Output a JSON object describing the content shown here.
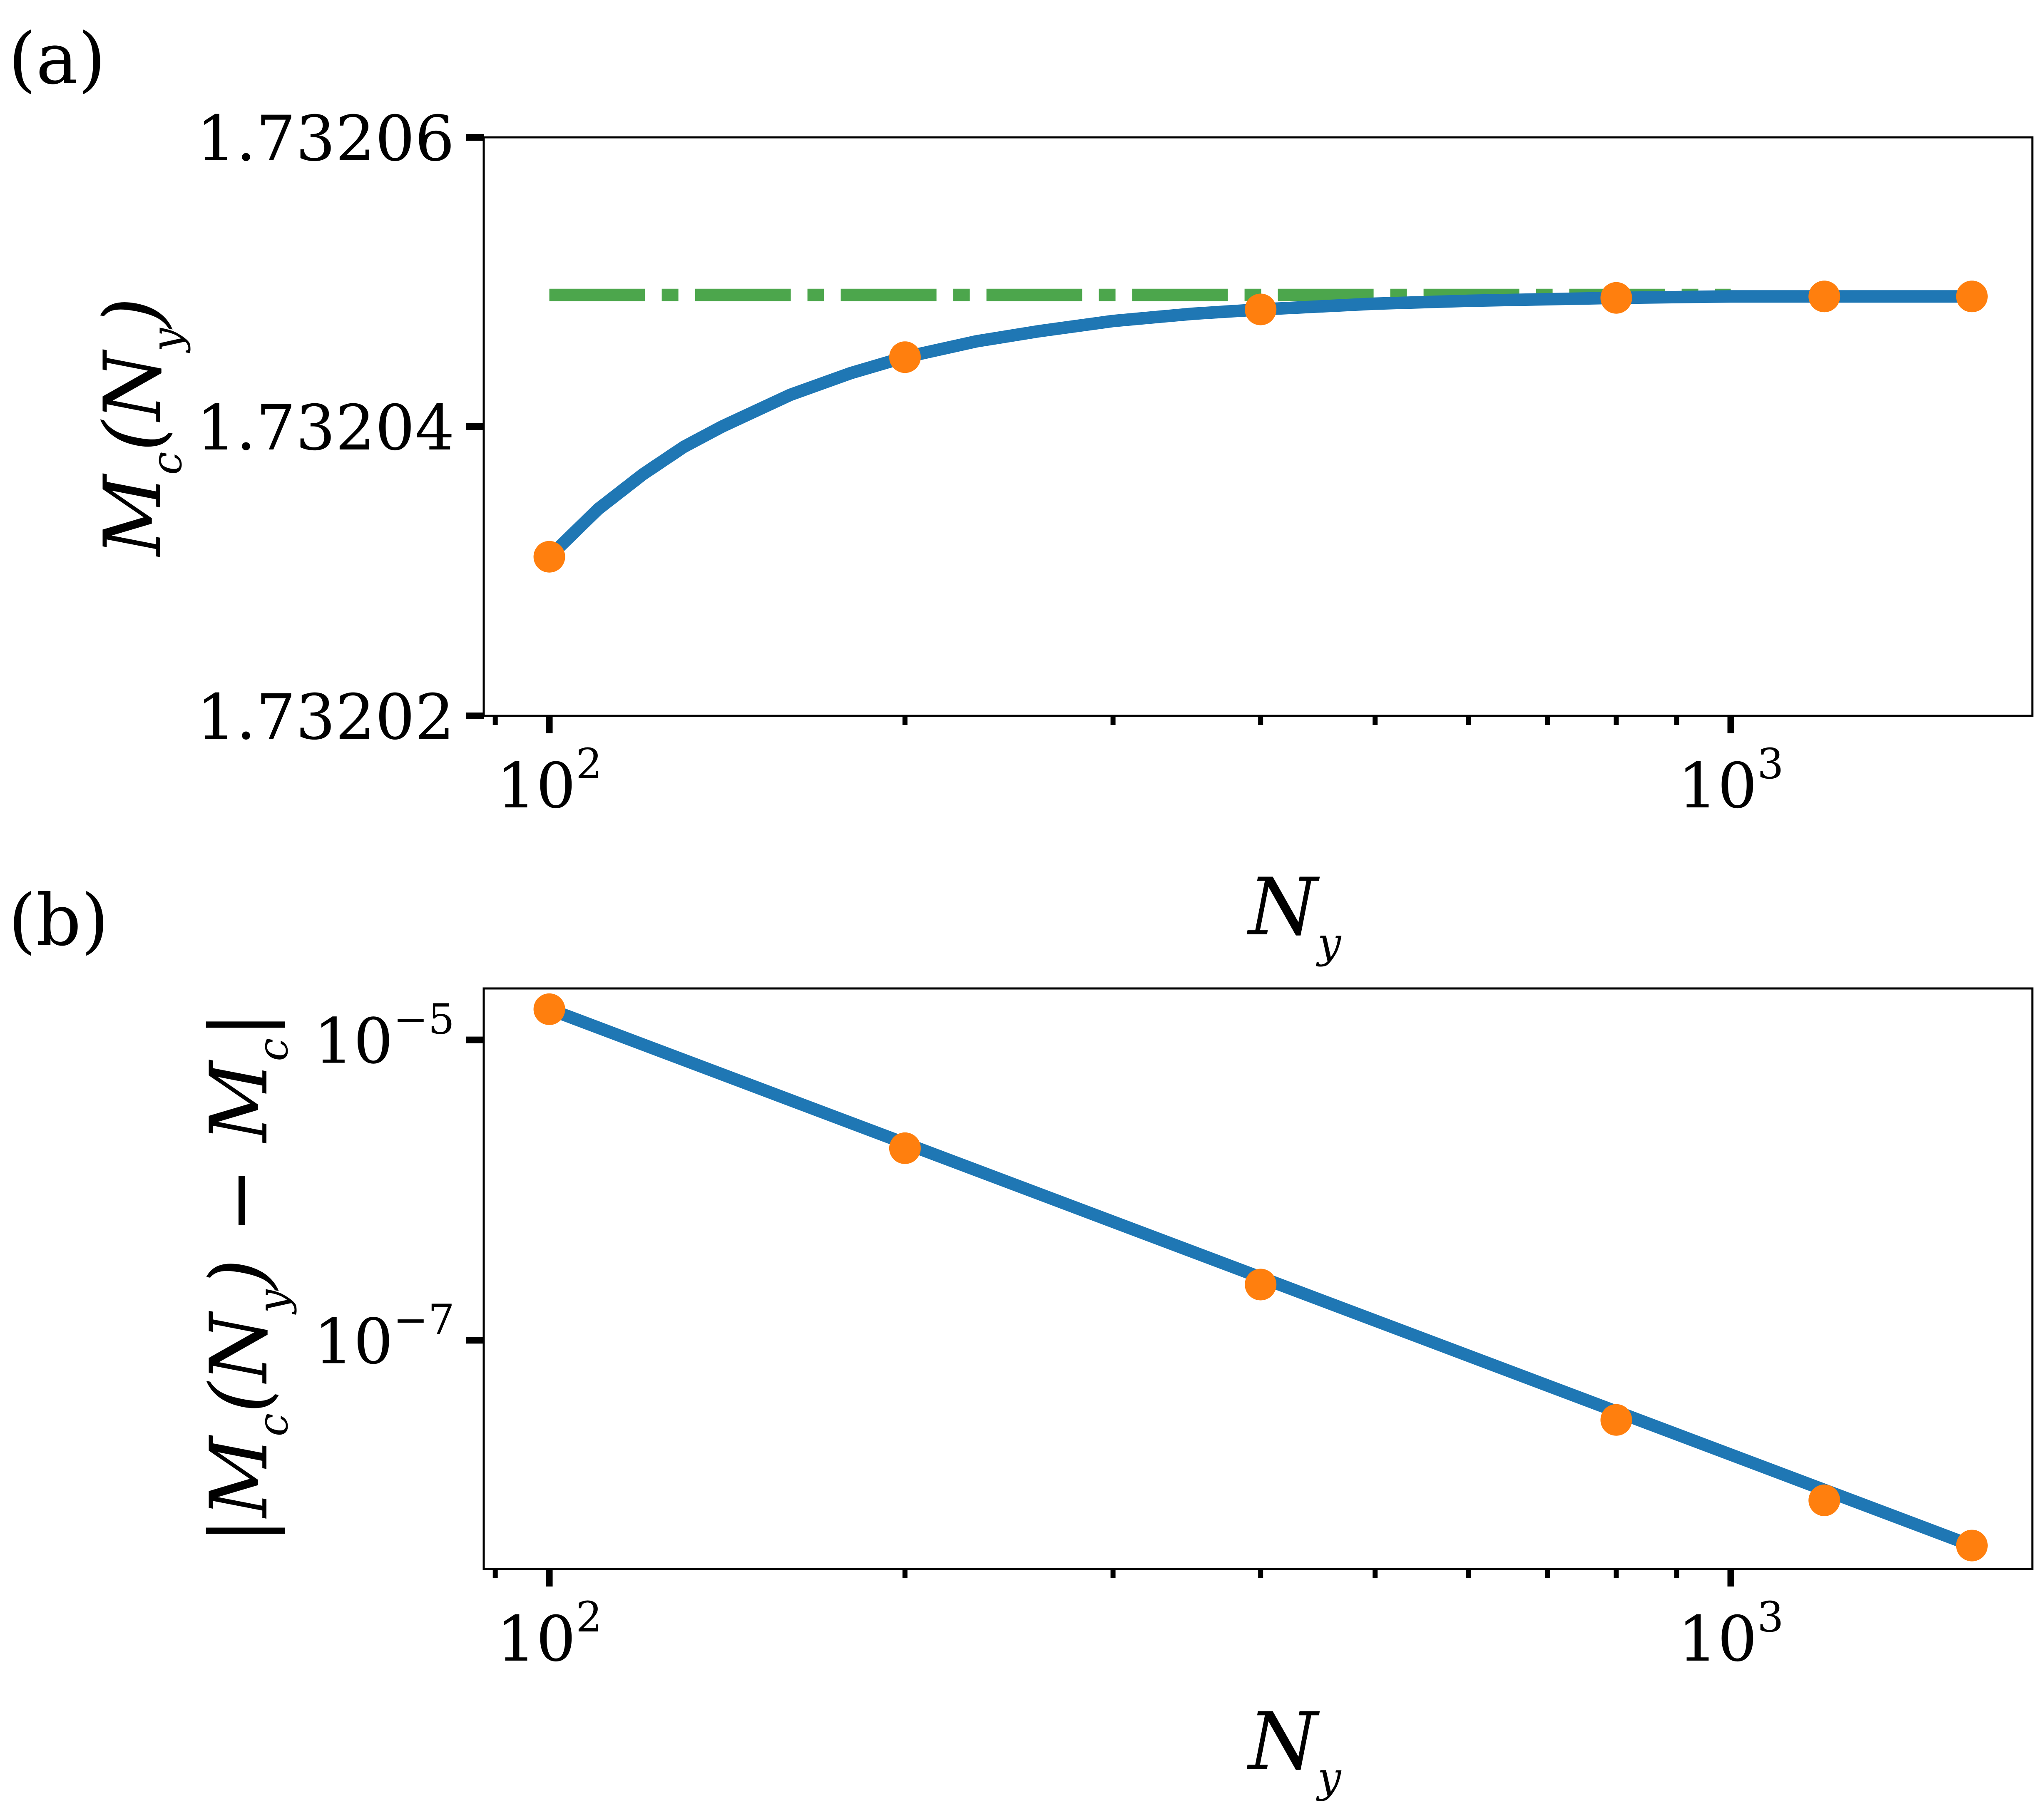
{
  "chart_data": [
    {
      "type": "line",
      "panel_label": "(a)",
      "xlabel": "N_y",
      "ylabel": "M_c(N_y)",
      "xscale": "log",
      "yscale": "linear",
      "xlim": [
        88,
        1800
      ],
      "ylim": [
        1.73202,
        1.73206
      ],
      "x_ticks": [
        {
          "value": 100,
          "base": "10",
          "exp": "2"
        },
        {
          "value": 1000,
          "base": "10",
          "exp": "3"
        }
      ],
      "y_ticks": [
        {
          "value": 1.73202,
          "label": "1.73202"
        },
        {
          "value": 1.73204,
          "label": "1.73204"
        },
        {
          "value": 1.73206,
          "label": "1.73206"
        }
      ],
      "grid": false,
      "series": [
        {
          "kind": "fit",
          "color": "#1f77b4",
          "x": [
            100,
            110,
            120,
            130,
            140,
            160,
            180,
            200,
            230,
            260,
            300,
            350,
            400,
            500,
            600,
            800,
            1000,
            1280,
            1600
          ],
          "y": [
            1.732031,
            1.7320343,
            1.7320367,
            1.7320386,
            1.73204,
            1.7320422,
            1.7320437,
            1.7320448,
            1.7320459,
            1.7320466,
            1.7320473,
            1.7320478,
            1.7320481,
            1.7320485,
            1.7320487,
            1.7320489,
            1.732049,
            1.732049,
            1.732049
          ]
        },
        {
          "kind": "data",
          "color": "#ff7f0e",
          "x": [
            100,
            200,
            400,
            800,
            1200,
            1600
          ],
          "y": [
            1.732031,
            1.7320448,
            1.7320481,
            1.7320489,
            1.732049,
            1.732049
          ]
        },
        {
          "kind": "limit",
          "color": "#4ca64c",
          "style": "dashdot",
          "x": [
            100,
            1000
          ],
          "y": [
            1.7320491,
            1.7320491
          ]
        }
      ]
    },
    {
      "type": "line",
      "panel_label": "(b)",
      "xlabel": "N_y",
      "ylabel": "|M_c(N_y) − M_c|",
      "xscale": "log",
      "yscale": "log",
      "xlim": [
        88,
        1800
      ],
      "ylim": [
        3e-09,
        2.2e-05
      ],
      "x_ticks": [
        {
          "value": 100,
          "base": "10",
          "exp": "2"
        },
        {
          "value": 1000,
          "base": "10",
          "exp": "3"
        }
      ],
      "y_ticks": [
        {
          "value": 1e-05,
          "base": "10",
          "exp": "−5"
        },
        {
          "value": 1e-07,
          "base": "10",
          "exp": "−7"
        }
      ],
      "grid": false,
      "series": [
        {
          "kind": "fit",
          "color": "#1f77b4",
          "x": [
            100,
            1600
          ],
          "y": [
            1.6e-05,
            4.3e-09
          ]
        },
        {
          "kind": "data",
          "color": "#ff7f0e",
          "x": [
            100,
            200,
            400,
            800,
            1200,
            1600
          ],
          "y": [
            1.6e-05,
            1.9e-06,
            2.35e-07,
            2.95e-08,
            8.6e-09,
            4.3e-09
          ]
        }
      ]
    }
  ]
}
